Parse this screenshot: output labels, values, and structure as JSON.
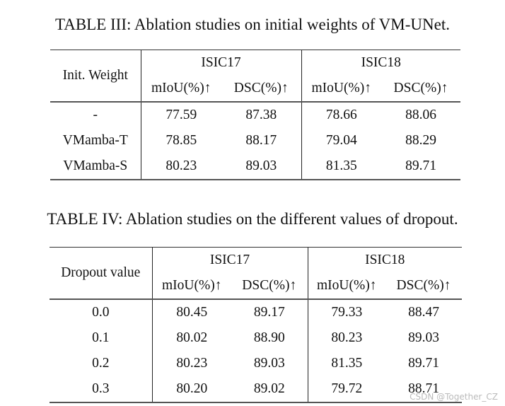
{
  "table3": {
    "caption": "TABLE III: Ablation studies on initial weights of VM-UNet.",
    "row_header": "Init. Weight",
    "groups": [
      "ISIC17",
      "ISIC18"
    ],
    "metrics": [
      "mIoU(%)↑",
      "DSC(%)↑",
      "mIoU(%)↑",
      "DSC(%)↑"
    ],
    "rows": [
      [
        "-",
        "77.59",
        "87.38",
        "78.66",
        "88.06"
      ],
      [
        "VMamba-T",
        "78.85",
        "88.17",
        "79.04",
        "88.29"
      ],
      [
        "VMamba-S",
        "80.23",
        "89.03",
        "81.35",
        "89.71"
      ]
    ]
  },
  "table4": {
    "caption": "TABLE IV: Ablation studies on the different values of dropout.",
    "row_header": "Dropout value",
    "groups": [
      "ISIC17",
      "ISIC18"
    ],
    "metrics": [
      "mIoU(%)↑",
      "DSC(%)↑",
      "mIoU(%)↑",
      "DSC(%)↑"
    ],
    "rows": [
      [
        "0.0",
        "80.45",
        "89.17",
        "79.33",
        "88.47"
      ],
      [
        "0.1",
        "80.02",
        "88.90",
        "80.23",
        "89.03"
      ],
      [
        "0.2",
        "80.23",
        "89.03",
        "81.35",
        "89.71"
      ],
      [
        "0.3",
        "80.20",
        "89.02",
        "79.72",
        "88.71"
      ]
    ]
  },
  "watermark": "CSDN @Together_CZ"
}
